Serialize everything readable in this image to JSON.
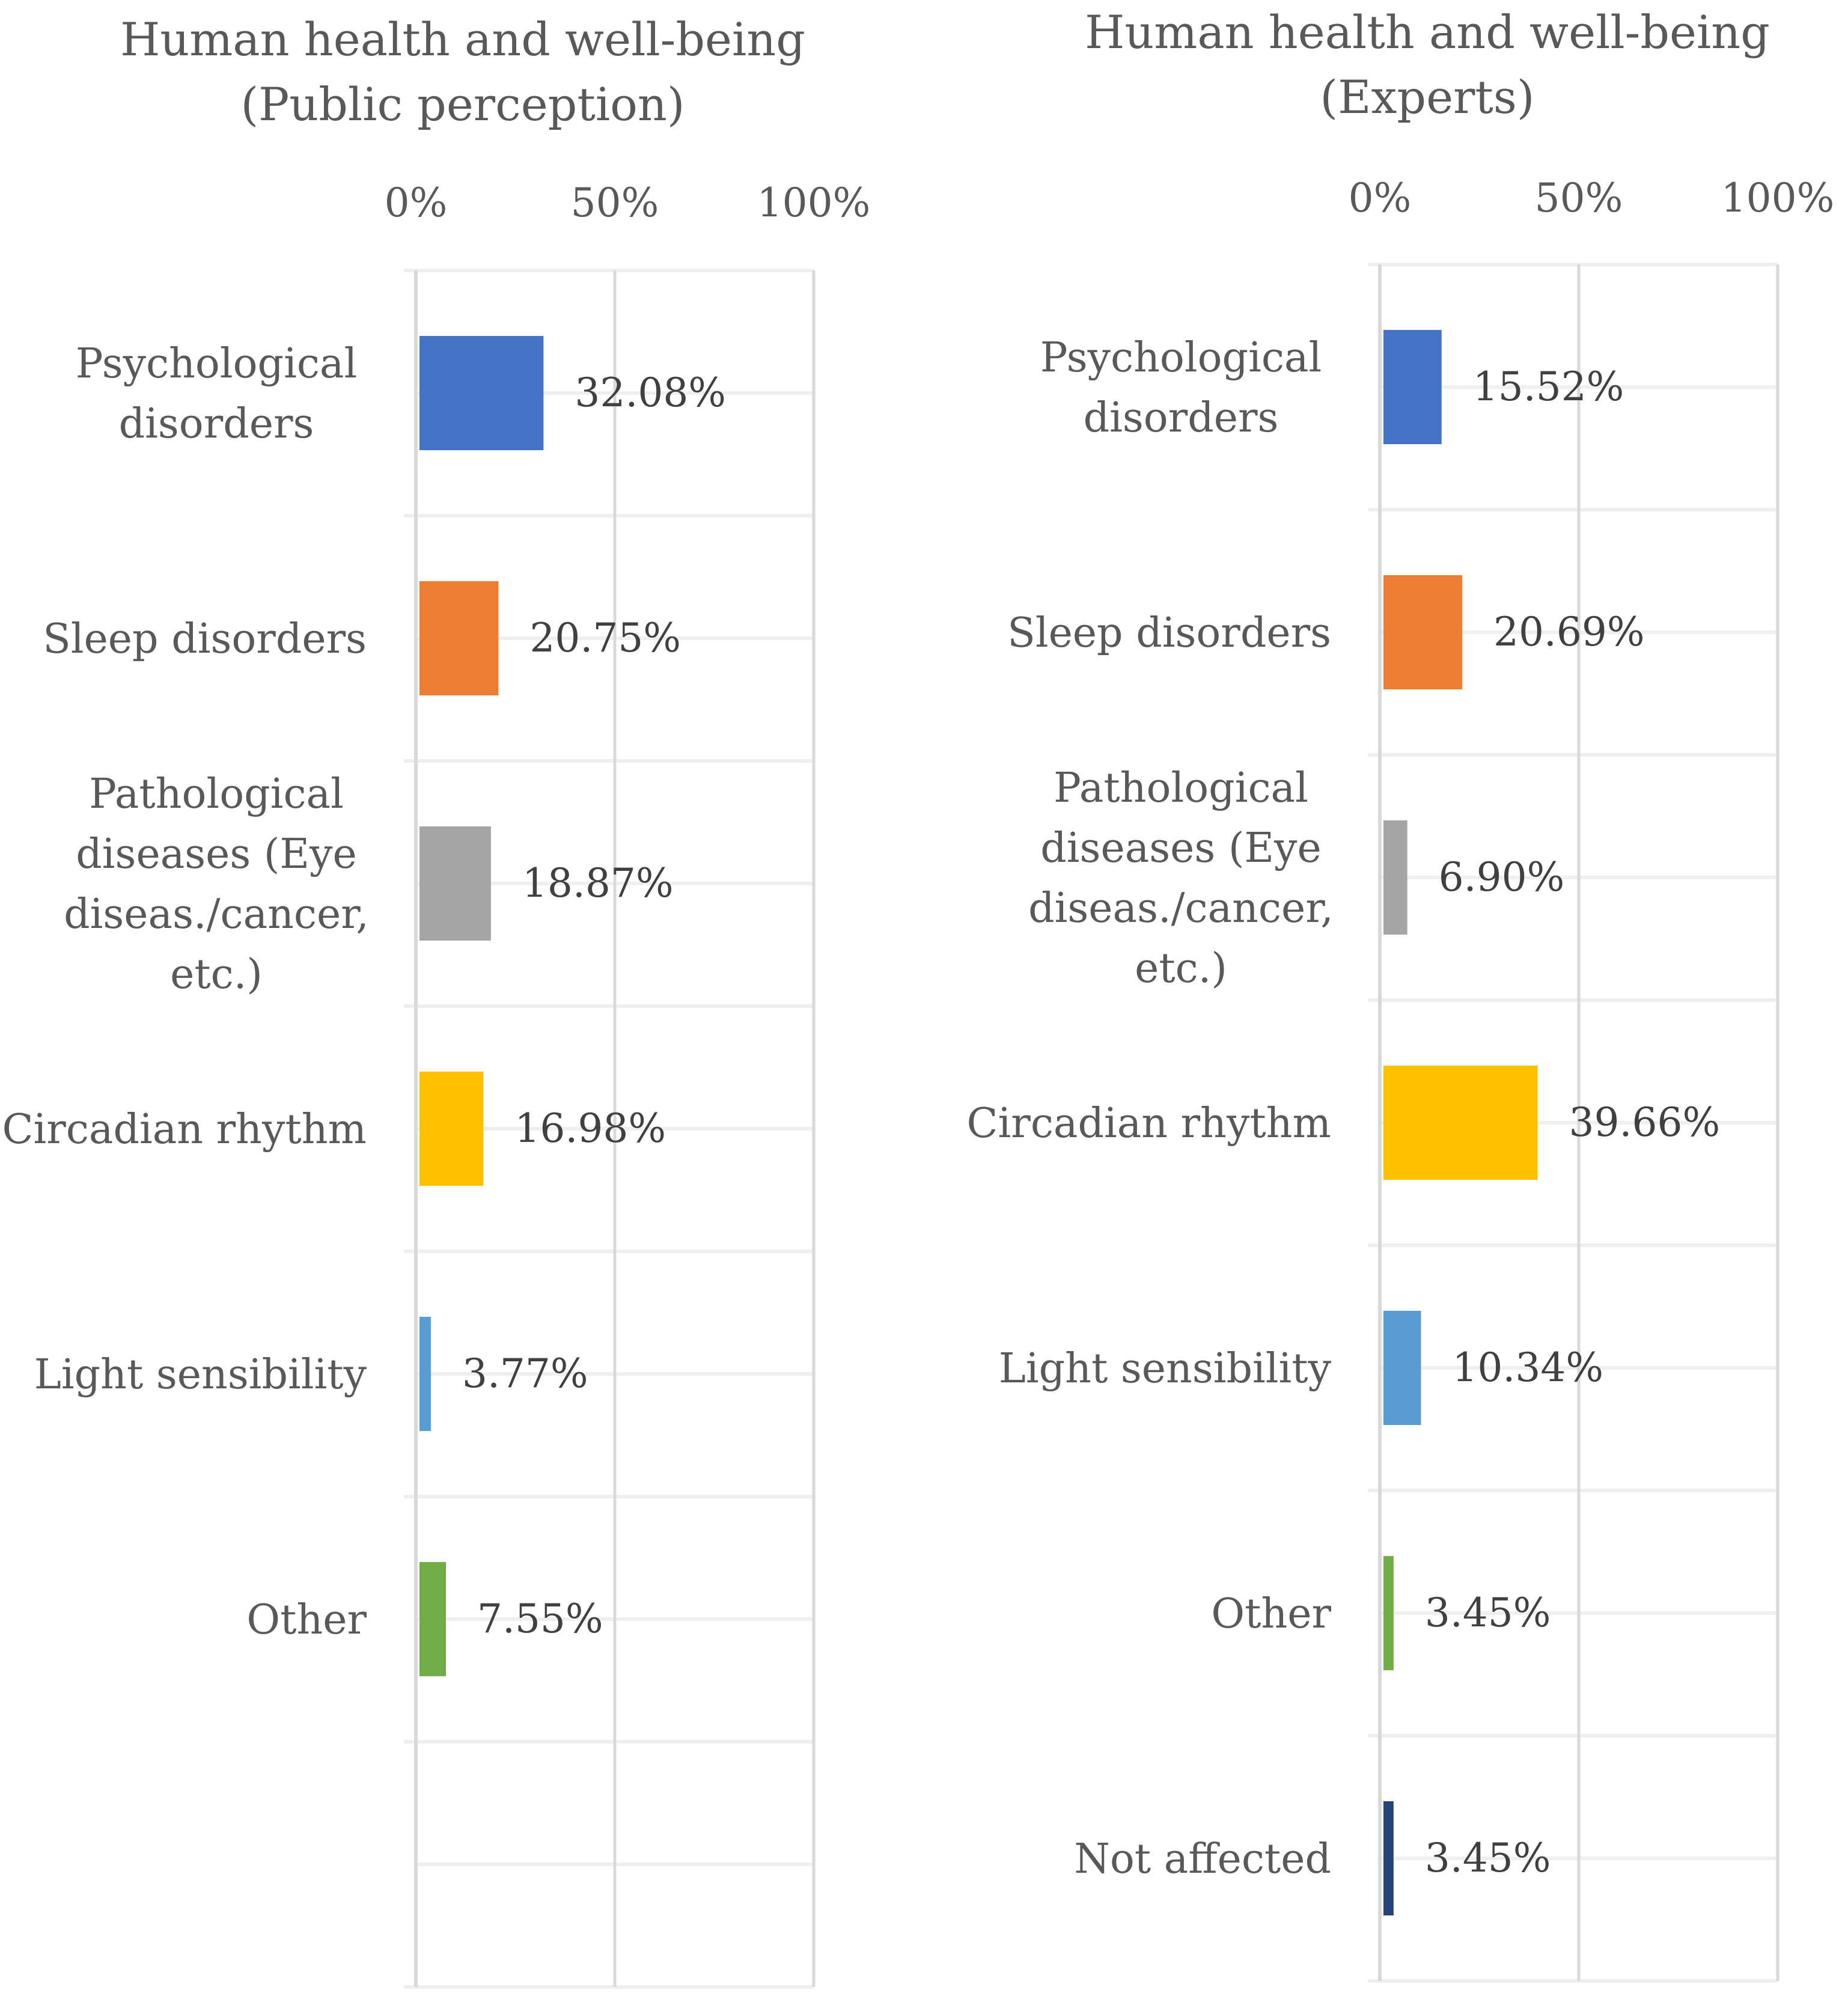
{
  "chart_data": [
    {
      "type": "bar",
      "orientation": "horizontal",
      "title": [
        "Human health and well-being",
        "(Public perception)"
      ],
      "xlim": [
        0,
        100
      ],
      "x_ticks": [
        "0%",
        "50%",
        "100%"
      ],
      "axis_position": "top",
      "categories": [
        [
          "Psychological",
          "disorders"
        ],
        [
          "Sleep disorders"
        ],
        [
          "Pathological",
          "diseases (Eye",
          "diseas./cancer,",
          "etc.)"
        ],
        [
          "Circadian rhythm"
        ],
        [
          "Light sensibility"
        ],
        [
          "Other"
        ],
        []
      ],
      "values": [
        32.08,
        20.75,
        18.87,
        16.98,
        3.77,
        7.55,
        null
      ],
      "labels": [
        "32.08%",
        "20.75%",
        "18.87%",
        "16.98%",
        "3.77%",
        "7.55%",
        ""
      ],
      "colors": [
        "#4472c4",
        "#ed7d31",
        "#a5a5a5",
        "#ffc000",
        "#5b9bd5",
        "#70ad47",
        "#264478"
      ]
    },
    {
      "type": "bar",
      "orientation": "horizontal",
      "title": [
        "Human health and well-being",
        "(Experts)"
      ],
      "xlim": [
        0,
        100
      ],
      "x_ticks": [
        "0%",
        "50%",
        "100%"
      ],
      "axis_position": "top",
      "categories": [
        [
          "Psychological",
          "disorders"
        ],
        [
          "Sleep disorders"
        ],
        [
          "Pathological",
          "diseases (Eye",
          "diseas./cancer,",
          "etc.)"
        ],
        [
          "Circadian rhythm"
        ],
        [
          "Light sensibility"
        ],
        [
          "Other"
        ],
        [
          "Not affected"
        ]
      ],
      "values": [
        15.52,
        20.69,
        6.9,
        39.66,
        10.34,
        3.45,
        3.45
      ],
      "labels": [
        "15.52%",
        "20.69%",
        "6.90%",
        "39.66%",
        "10.34%",
        "3.45%",
        "3.45%"
      ],
      "colors": [
        "#4472c4",
        "#ed7d31",
        "#a5a5a5",
        "#ffc000",
        "#5b9bd5",
        "#70ad47",
        "#264478"
      ]
    }
  ]
}
